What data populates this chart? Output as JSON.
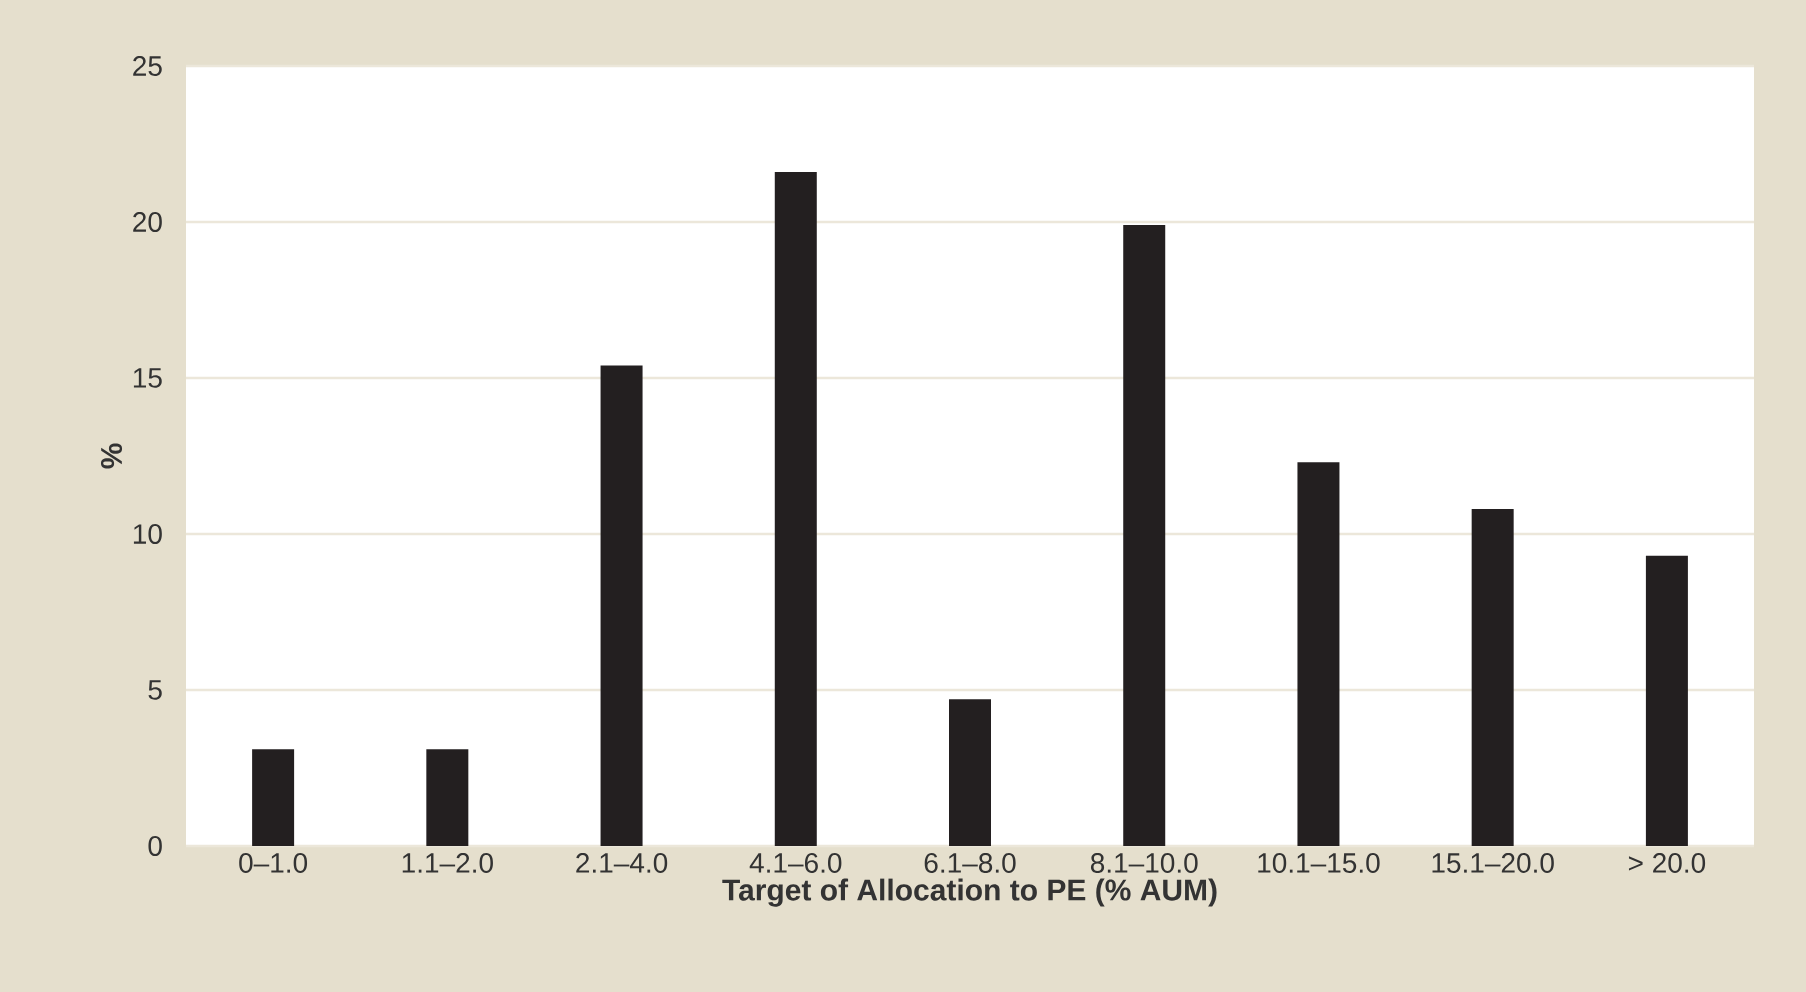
{
  "chart_data": {
    "type": "bar",
    "xlabel": "Target of Allocation to PE (% AUM)",
    "ylabel": "%",
    "categories": [
      "0–1.0",
      "1.1–2.0",
      "2.1–4.0",
      "4.1–6.0",
      "6.1–8.0",
      "8.1–10.0",
      "10.1–15.0",
      "15.1–20.0",
      "> 20.0"
    ],
    "values": [
      3.1,
      3.1,
      15.4,
      21.6,
      4.7,
      19.9,
      12.3,
      10.8,
      9.3
    ],
    "color": "#231f20",
    "ylim": [
      0,
      25
    ],
    "yticks": [
      0,
      5,
      10,
      15,
      20,
      25
    ],
    "grid": "y"
  }
}
